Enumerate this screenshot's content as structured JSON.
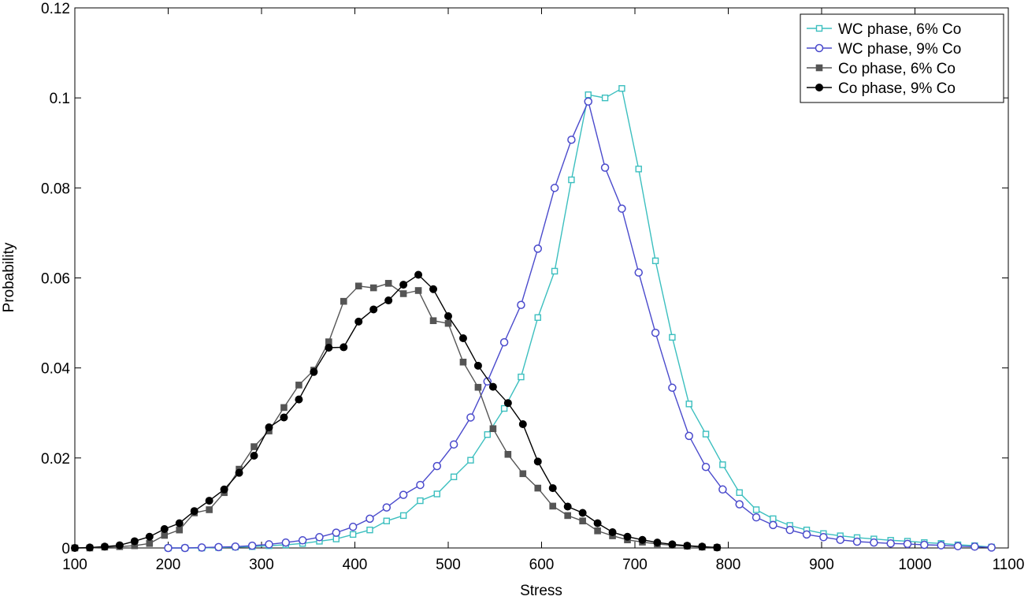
{
  "chart_data": {
    "type": "line",
    "xlabel": "Stress",
    "ylabel": "Probability",
    "xlim": [
      100,
      1100
    ],
    "ylim": [
      0,
      0.12
    ],
    "x_ticks": [
      100,
      200,
      300,
      400,
      500,
      600,
      700,
      800,
      900,
      1000,
      1100
    ],
    "x_tick_labels": [
      "100",
      "200",
      "300",
      "400",
      "500",
      "600",
      "700",
      "800",
      "900",
      "1000",
      "1100"
    ],
    "y_ticks": [
      0,
      0.02,
      0.04,
      0.06,
      0.08,
      0.1,
      0.12
    ],
    "y_tick_labels": [
      "0",
      "0.02",
      "0.04",
      "0.06",
      "0.08",
      "0.1",
      "0.12"
    ],
    "grid": false,
    "legend_position": "top-right",
    "series": [
      {
        "name": "WC phase, 6% Co",
        "color": "#3cbfbf",
        "marker": "square-open",
        "x": [
          200,
          218,
          236,
          254,
          272,
          290,
          308,
          326,
          344,
          362,
          380,
          398,
          416,
          434,
          452,
          470,
          488,
          506,
          524,
          542,
          560,
          578,
          596,
          614,
          632,
          650,
          668,
          686,
          704,
          722,
          740,
          758,
          776,
          794,
          812,
          830,
          848,
          866,
          884,
          902,
          920,
          938,
          956,
          974,
          992,
          1010,
          1028,
          1046,
          1064,
          1082
        ],
        "y": [
          0.0,
          0.0,
          0.0,
          0.0001,
          0.0002,
          0.0003,
          0.0005,
          0.0007,
          0.001,
          0.0015,
          0.002,
          0.003,
          0.004,
          0.006,
          0.0072,
          0.0105,
          0.012,
          0.0158,
          0.0195,
          0.0252,
          0.031,
          0.038,
          0.0512,
          0.0615,
          0.0818,
          0.1007,
          0.1,
          0.1021,
          0.0842,
          0.0638,
          0.0468,
          0.032,
          0.0253,
          0.0185,
          0.0123,
          0.0085,
          0.0065,
          0.005,
          0.004,
          0.0032,
          0.0027,
          0.0023,
          0.002,
          0.0017,
          0.0015,
          0.0012,
          0.001,
          0.0007,
          0.0005,
          0.0002
        ]
      },
      {
        "name": "WC phase, 9% Co",
        "color": "#4a4acc",
        "marker": "circle-open",
        "x": [
          200,
          218,
          236,
          254,
          272,
          290,
          308,
          326,
          344,
          362,
          380,
          398,
          416,
          434,
          452,
          470,
          488,
          506,
          524,
          542,
          560,
          578,
          596,
          614,
          632,
          650,
          668,
          686,
          704,
          722,
          740,
          758,
          776,
          794,
          812,
          830,
          848,
          866,
          884,
          902,
          920,
          938,
          956,
          974,
          992,
          1010,
          1028,
          1046,
          1064,
          1082
        ],
        "y": [
          0.0,
          0.0,
          0.0001,
          0.0002,
          0.0003,
          0.0005,
          0.0008,
          0.0012,
          0.0017,
          0.0024,
          0.0034,
          0.0047,
          0.0065,
          0.009,
          0.0118,
          0.014,
          0.0182,
          0.023,
          0.029,
          0.037,
          0.0457,
          0.054,
          0.0665,
          0.08,
          0.0907,
          0.0992,
          0.0845,
          0.0754,
          0.0612,
          0.0478,
          0.0356,
          0.0249,
          0.018,
          0.013,
          0.0097,
          0.0068,
          0.0051,
          0.004,
          0.003,
          0.0024,
          0.0018,
          0.0014,
          0.0012,
          0.001,
          0.0009,
          0.0007,
          0.0006,
          0.0004,
          0.0003,
          0.0001
        ]
      },
      {
        "name": "Co phase, 6% Co",
        "color": "#555555",
        "marker": "square-filled",
        "x": [
          100,
          116,
          132,
          148,
          164,
          180,
          196,
          212,
          228,
          244,
          260,
          276,
          292,
          308,
          324,
          340,
          356,
          372,
          388,
          404,
          420,
          436,
          452,
          468,
          484,
          500,
          516,
          532,
          548,
          564,
          580,
          596,
          612,
          628,
          644,
          660,
          676,
          692,
          708,
          724,
          740,
          756,
          772,
          788
        ],
        "y": [
          0.0,
          0.0,
          0.0002,
          0.0003,
          0.0005,
          0.001,
          0.0028,
          0.004,
          0.0078,
          0.0085,
          0.0123,
          0.0175,
          0.0225,
          0.026,
          0.0312,
          0.0362,
          0.0395,
          0.0458,
          0.0548,
          0.0582,
          0.0578,
          0.0588,
          0.0565,
          0.0572,
          0.0505,
          0.0499,
          0.0413,
          0.0357,
          0.0265,
          0.0208,
          0.0165,
          0.0133,
          0.0093,
          0.0072,
          0.006,
          0.0038,
          0.0027,
          0.0018,
          0.0013,
          0.0009,
          0.0006,
          0.0004,
          0.0002,
          0.0001
        ]
      },
      {
        "name": "Co phase, 9% Co",
        "color": "#000000",
        "marker": "circle-filled",
        "x": [
          100,
          116,
          132,
          148,
          164,
          180,
          196,
          212,
          228,
          244,
          260,
          276,
          292,
          308,
          324,
          340,
          356,
          372,
          388,
          404,
          420,
          436,
          452,
          468,
          484,
          500,
          516,
          532,
          548,
          564,
          580,
          596,
          612,
          628,
          644,
          660,
          676,
          692,
          708,
          724,
          740,
          756,
          772,
          788
        ],
        "y": [
          0.0,
          0.0001,
          0.0003,
          0.0006,
          0.0015,
          0.0025,
          0.0042,
          0.0055,
          0.0082,
          0.0105,
          0.013,
          0.0167,
          0.0205,
          0.0268,
          0.029,
          0.033,
          0.0391,
          0.0445,
          0.0446,
          0.0503,
          0.053,
          0.055,
          0.0585,
          0.0607,
          0.0575,
          0.0515,
          0.0466,
          0.0405,
          0.0358,
          0.0322,
          0.0275,
          0.0192,
          0.0133,
          0.0092,
          0.0078,
          0.0055,
          0.0035,
          0.0025,
          0.0018,
          0.0012,
          0.0008,
          0.0005,
          0.0003,
          0.0001
        ]
      }
    ]
  }
}
